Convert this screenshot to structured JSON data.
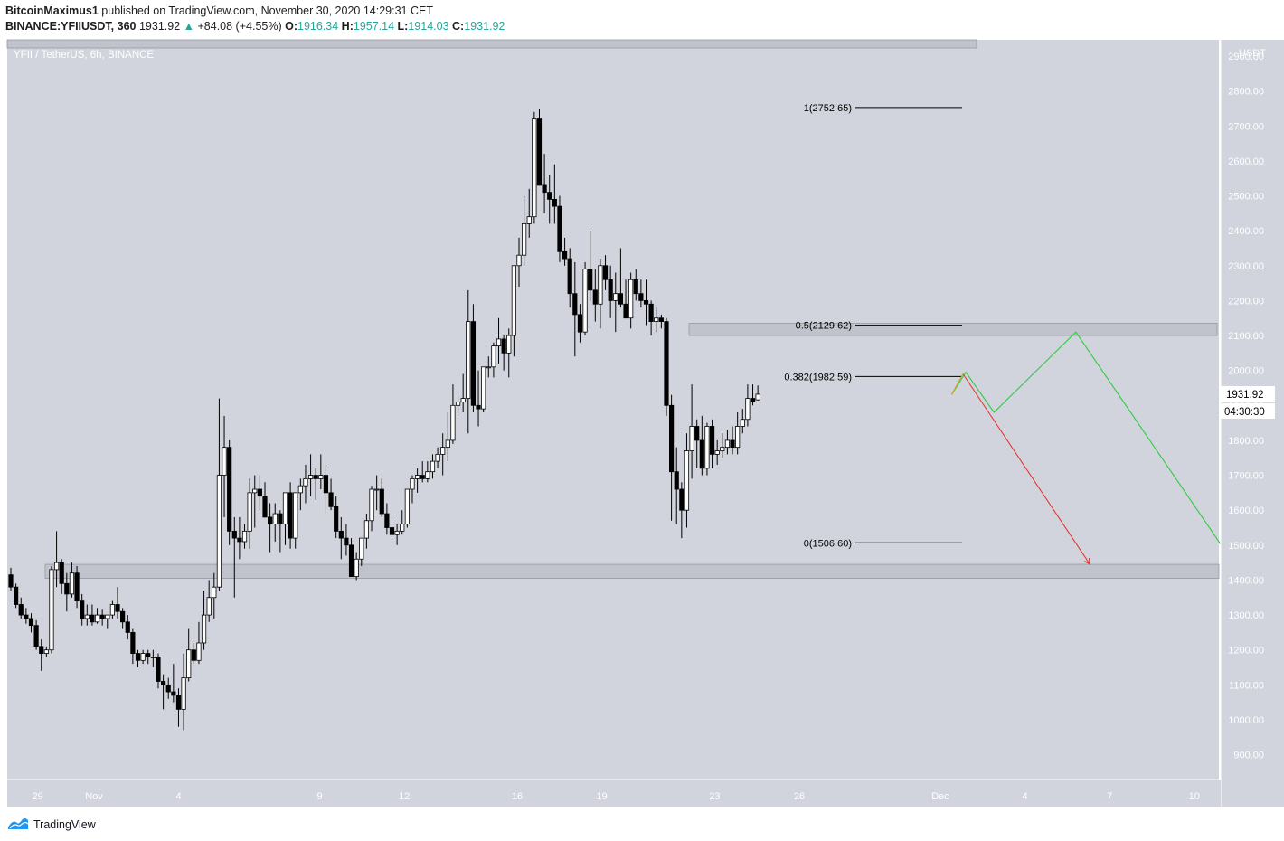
{
  "header": {
    "author": "BitcoinMaximus1",
    "published_text": "published on TradingView.com, November 30, 2020 14:29:31 CET",
    "symbol": "BINANCE:YFIIUSDT, 360",
    "last": "1931.92",
    "change_arrow": "▲",
    "change": "+84.08 (+4.55%)",
    "o_label": "O:",
    "o": "1916.34",
    "h_label": "H:",
    "h": "1957.14",
    "l_label": "L:",
    "l": "1914.03",
    "c_label": "C:",
    "c": "1931.92"
  },
  "legend_title": "YFII / TetherUS, 6h, BINANCE",
  "price_badge": "1931.92",
  "countdown_badge": "04:30:30",
  "footer": {
    "brand": "TradingView",
    "icon": "tradingview-logo-icon"
  },
  "colors": {
    "plot_bg": "#d1d4dc",
    "up": "#ffffff",
    "down": "#000000",
    "zone": "#b2b5be",
    "path_up": "#2ecc40",
    "path_down": "#e53935",
    "accent": "#26a69a"
  },
  "chart_data": {
    "type": "candlestick",
    "timeframe": "6h",
    "y_axis": {
      "unit": "USDT",
      "ticks": [
        900,
        1000,
        1100,
        1200,
        1300,
        1400,
        1500,
        1600,
        1700,
        1800,
        1900,
        2000,
        2100,
        2200,
        2300,
        2400,
        2500,
        2600,
        2700,
        2800,
        2900
      ],
      "tick_labels": [
        "900.00",
        "1000.00",
        "1100.00",
        "1200.00",
        "1300.00",
        "1400.00",
        "1500.00",
        "1600.00",
        "1700.00",
        "1800.00",
        "1900.00",
        "2000.00",
        "2100.00",
        "2200.00",
        "2300.00",
        "2400.00",
        "2500.00",
        "2600.00",
        "2700.00",
        "2800.00",
        "2900.00"
      ]
    },
    "x_axis": {
      "labels": [
        {
          "t": "29",
          "day": -2
        },
        {
          "t": "Nov",
          "day": 0
        },
        {
          "t": "4",
          "day": 3
        },
        {
          "t": "9",
          "day": 8
        },
        {
          "t": "12",
          "day": 11
        },
        {
          "t": "16",
          "day": 15
        },
        {
          "t": "19",
          "day": 18
        },
        {
          "t": "23",
          "day": 22
        },
        {
          "t": "26",
          "day": 25
        },
        {
          "t": "Dec",
          "day": 30
        },
        {
          "t": "4",
          "day": 33
        },
        {
          "t": "7",
          "day": 36
        },
        {
          "t": "10",
          "day": 39
        }
      ]
    },
    "candles_ohlc": [
      [
        1415,
        1435,
        1370,
        1380
      ],
      [
        1380,
        1390,
        1320,
        1330
      ],
      [
        1330,
        1350,
        1290,
        1300
      ],
      [
        1300,
        1320,
        1275,
        1290
      ],
      [
        1290,
        1305,
        1250,
        1270
      ],
      [
        1270,
        1285,
        1200,
        1210
      ],
      [
        1210,
        1230,
        1140,
        1190
      ],
      [
        1190,
        1210,
        1180,
        1200
      ],
      [
        1200,
        1440,
        1190,
        1430
      ],
      [
        1430,
        1540,
        1380,
        1450
      ],
      [
        1450,
        1460,
        1360,
        1390
      ],
      [
        1390,
        1420,
        1310,
        1360
      ],
      [
        1360,
        1450,
        1350,
        1420
      ],
      [
        1420,
        1440,
        1320,
        1340
      ],
      [
        1340,
        1360,
        1270,
        1290
      ],
      [
        1290,
        1330,
        1270,
        1300
      ],
      [
        1300,
        1330,
        1270,
        1280
      ],
      [
        1280,
        1320,
        1275,
        1300
      ],
      [
        1300,
        1315,
        1270,
        1290
      ],
      [
        1290,
        1300,
        1260,
        1300
      ],
      [
        1300,
        1340,
        1290,
        1330
      ],
      [
        1330,
        1380,
        1290,
        1310
      ],
      [
        1310,
        1320,
        1260,
        1280
      ],
      [
        1280,
        1300,
        1230,
        1250
      ],
      [
        1250,
        1260,
        1160,
        1190
      ],
      [
        1190,
        1200,
        1150,
        1170
      ],
      [
        1170,
        1200,
        1160,
        1190
      ],
      [
        1190,
        1200,
        1160,
        1180
      ],
      [
        1180,
        1200,
        1150,
        1180
      ],
      [
        1180,
        1190,
        1090,
        1110
      ],
      [
        1110,
        1130,
        1030,
        1100
      ],
      [
        1100,
        1120,
        1060,
        1080
      ],
      [
        1080,
        1160,
        1050,
        1070
      ],
      [
        1070,
        1090,
        980,
        1030
      ],
      [
        1030,
        1190,
        970,
        1120
      ],
      [
        1120,
        1260,
        1110,
        1200
      ],
      [
        1200,
        1220,
        1160,
        1170
      ],
      [
        1170,
        1280,
        1160,
        1220
      ],
      [
        1220,
        1370,
        1200,
        1300
      ],
      [
        1300,
        1400,
        1280,
        1350
      ],
      [
        1350,
        1420,
        1290,
        1380
      ],
      [
        1380,
        1920,
        1370,
        1700
      ],
      [
        1700,
        1870,
        1580,
        1780
      ],
      [
        1780,
        1800,
        1500,
        1540
      ],
      [
        1540,
        1580,
        1350,
        1520
      ],
      [
        1520,
        1580,
        1460,
        1510
      ],
      [
        1510,
        1560,
        1490,
        1540
      ],
      [
        1540,
        1690,
        1490,
        1650
      ],
      [
        1650,
        1700,
        1550,
        1660
      ],
      [
        1660,
        1700,
        1600,
        1640
      ],
      [
        1640,
        1680,
        1590,
        1580
      ],
      [
        1580,
        1620,
        1480,
        1560
      ],
      [
        1560,
        1620,
        1510,
        1590
      ],
      [
        1590,
        1600,
        1480,
        1560
      ],
      [
        1560,
        1620,
        1500,
        1650
      ],
      [
        1650,
        1680,
        1490,
        1520
      ],
      [
        1520,
        1640,
        1490,
        1650
      ],
      [
        1650,
        1690,
        1600,
        1670
      ],
      [
        1670,
        1730,
        1620,
        1690
      ],
      [
        1690,
        1760,
        1640,
        1700
      ],
      [
        1700,
        1720,
        1630,
        1690
      ],
      [
        1690,
        1760,
        1660,
        1700
      ],
      [
        1700,
        1730,
        1590,
        1650
      ],
      [
        1650,
        1690,
        1600,
        1610
      ],
      [
        1610,
        1640,
        1520,
        1540
      ],
      [
        1540,
        1580,
        1460,
        1520
      ],
      [
        1520,
        1560,
        1470,
        1500
      ],
      [
        1500,
        1520,
        1410,
        1410
      ],
      [
        1410,
        1480,
        1400,
        1460
      ],
      [
        1460,
        1520,
        1440,
        1520
      ],
      [
        1520,
        1590,
        1490,
        1570
      ],
      [
        1570,
        1670,
        1540,
        1660
      ],
      [
        1660,
        1700,
        1600,
        1660
      ],
      [
        1660,
        1690,
        1580,
        1590
      ],
      [
        1590,
        1620,
        1530,
        1550
      ],
      [
        1550,
        1580,
        1510,
        1530
      ],
      [
        1530,
        1560,
        1500,
        1540
      ],
      [
        1540,
        1600,
        1530,
        1560
      ],
      [
        1560,
        1650,
        1550,
        1660
      ],
      [
        1660,
        1700,
        1620,
        1690
      ],
      [
        1690,
        1720,
        1650,
        1700
      ],
      [
        1700,
        1740,
        1680,
        1690
      ],
      [
        1690,
        1740,
        1680,
        1710
      ],
      [
        1710,
        1760,
        1690,
        1740
      ],
      [
        1740,
        1780,
        1720,
        1760
      ],
      [
        1760,
        1820,
        1700,
        1780
      ],
      [
        1780,
        1880,
        1740,
        1800
      ],
      [
        1800,
        1960,
        1790,
        1900
      ],
      [
        1900,
        1930,
        1870,
        1910
      ],
      [
        1910,
        1990,
        1880,
        1920
      ],
      [
        1920,
        2230,
        1820,
        2140
      ],
      [
        2140,
        2190,
        1880,
        1900
      ],
      [
        1900,
        2000,
        1840,
        1890
      ],
      [
        1890,
        2000,
        1880,
        2010
      ],
      [
        2010,
        2040,
        1980,
        2010
      ],
      [
        2010,
        2080,
        1980,
        2070
      ],
      [
        2070,
        2150,
        2020,
        2090
      ],
      [
        2090,
        2100,
        2000,
        2050
      ],
      [
        2050,
        2120,
        1980,
        2100
      ],
      [
        2100,
        2300,
        2040,
        2300
      ],
      [
        2300,
        2380,
        2240,
        2330
      ],
      [
        2330,
        2500,
        2300,
        2420
      ],
      [
        2420,
        2520,
        2380,
        2440
      ],
      [
        2440,
        2740,
        2420,
        2720
      ],
      [
        2720,
        2750,
        2550,
        2530
      ],
      [
        2530,
        2620,
        2450,
        2510
      ],
      [
        2510,
        2560,
        2420,
        2490
      ],
      [
        2490,
        2590,
        2420,
        2470
      ],
      [
        2470,
        2500,
        2310,
        2340
      ],
      [
        2340,
        2380,
        2300,
        2320
      ],
      [
        2320,
        2350,
        2180,
        2220
      ],
      [
        2220,
        2310,
        2040,
        2160
      ],
      [
        2160,
        2190,
        2080,
        2110
      ],
      [
        2110,
        2310,
        2100,
        2290
      ],
      [
        2290,
        2400,
        2200,
        2230
      ],
      [
        2230,
        2290,
        2140,
        2190
      ],
      [
        2190,
        2320,
        2120,
        2300
      ],
      [
        2300,
        2330,
        2230,
        2260
      ],
      [
        2260,
        2300,
        2150,
        2200
      ],
      [
        2200,
        2280,
        2110,
        2220
      ],
      [
        2220,
        2350,
        2180,
        2190
      ],
      [
        2190,
        2260,
        2150,
        2150
      ],
      [
        2150,
        2280,
        2120,
        2260
      ],
      [
        2260,
        2290,
        2200,
        2220
      ],
      [
        2220,
        2260,
        2180,
        2200
      ],
      [
        2200,
        2260,
        2130,
        2190
      ],
      [
        2190,
        2200,
        2100,
        2140
      ],
      [
        2140,
        2180,
        2110,
        2150
      ],
      [
        2150,
        2160,
        2120,
        2140
      ],
      [
        2140,
        2150,
        1870,
        1900
      ],
      [
        1900,
        1930,
        1570,
        1710
      ],
      [
        1710,
        1780,
        1560,
        1660
      ],
      [
        1660,
        1680,
        1520,
        1600
      ],
      [
        1600,
        1820,
        1550,
        1770
      ],
      [
        1770,
        1960,
        1690,
        1840
      ],
      [
        1840,
        1860,
        1720,
        1800
      ],
      [
        1800,
        1870,
        1700,
        1720
      ],
      [
        1720,
        1850,
        1700,
        1840
      ],
      [
        1840,
        1860,
        1720,
        1760
      ],
      [
        1760,
        1800,
        1730,
        1770
      ],
      [
        1770,
        1820,
        1750,
        1780
      ],
      [
        1780,
        1830,
        1760,
        1800
      ],
      [
        1800,
        1840,
        1760,
        1780
      ],
      [
        1780,
        1880,
        1760,
        1840
      ],
      [
        1840,
        1890,
        1820,
        1860
      ],
      [
        1860,
        1960,
        1840,
        1920
      ],
      [
        1920,
        1960,
        1900,
        1910
      ],
      [
        1916,
        1957,
        1914,
        1932
      ]
    ],
    "horizontal_zones": [
      {
        "from": 1405,
        "to": 1445
      },
      {
        "from": 2100,
        "to": 2135
      },
      {
        "from": 2950,
        "to": 2970
      }
    ],
    "fibonacci": {
      "levels": [
        {
          "label": "1(2752.65)",
          "price": 2752.65
        },
        {
          "label": "0.5(2129.62)",
          "price": 2129.62
        },
        {
          "label": "0.382(1982.59)",
          "price": 1982.59
        },
        {
          "label": "0(1506.60)",
          "price": 1506.6
        }
      ]
    },
    "projection_paths": [
      {
        "color": "path_up",
        "points": [
          [
            30.4,
            1931
          ],
          [
            30.9,
            1995
          ],
          [
            31.9,
            1880
          ],
          [
            34.8,
            2110
          ],
          [
            40.8,
            1400
          ]
        ]
      },
      {
        "color": "path_down",
        "points": [
          [
            30.8,
            1990
          ],
          [
            35.3,
            1445
          ]
        ]
      },
      {
        "color": "#d4a017",
        "points": [
          [
            30.4,
            1931
          ],
          [
            30.8,
            1990
          ]
        ]
      }
    ]
  }
}
